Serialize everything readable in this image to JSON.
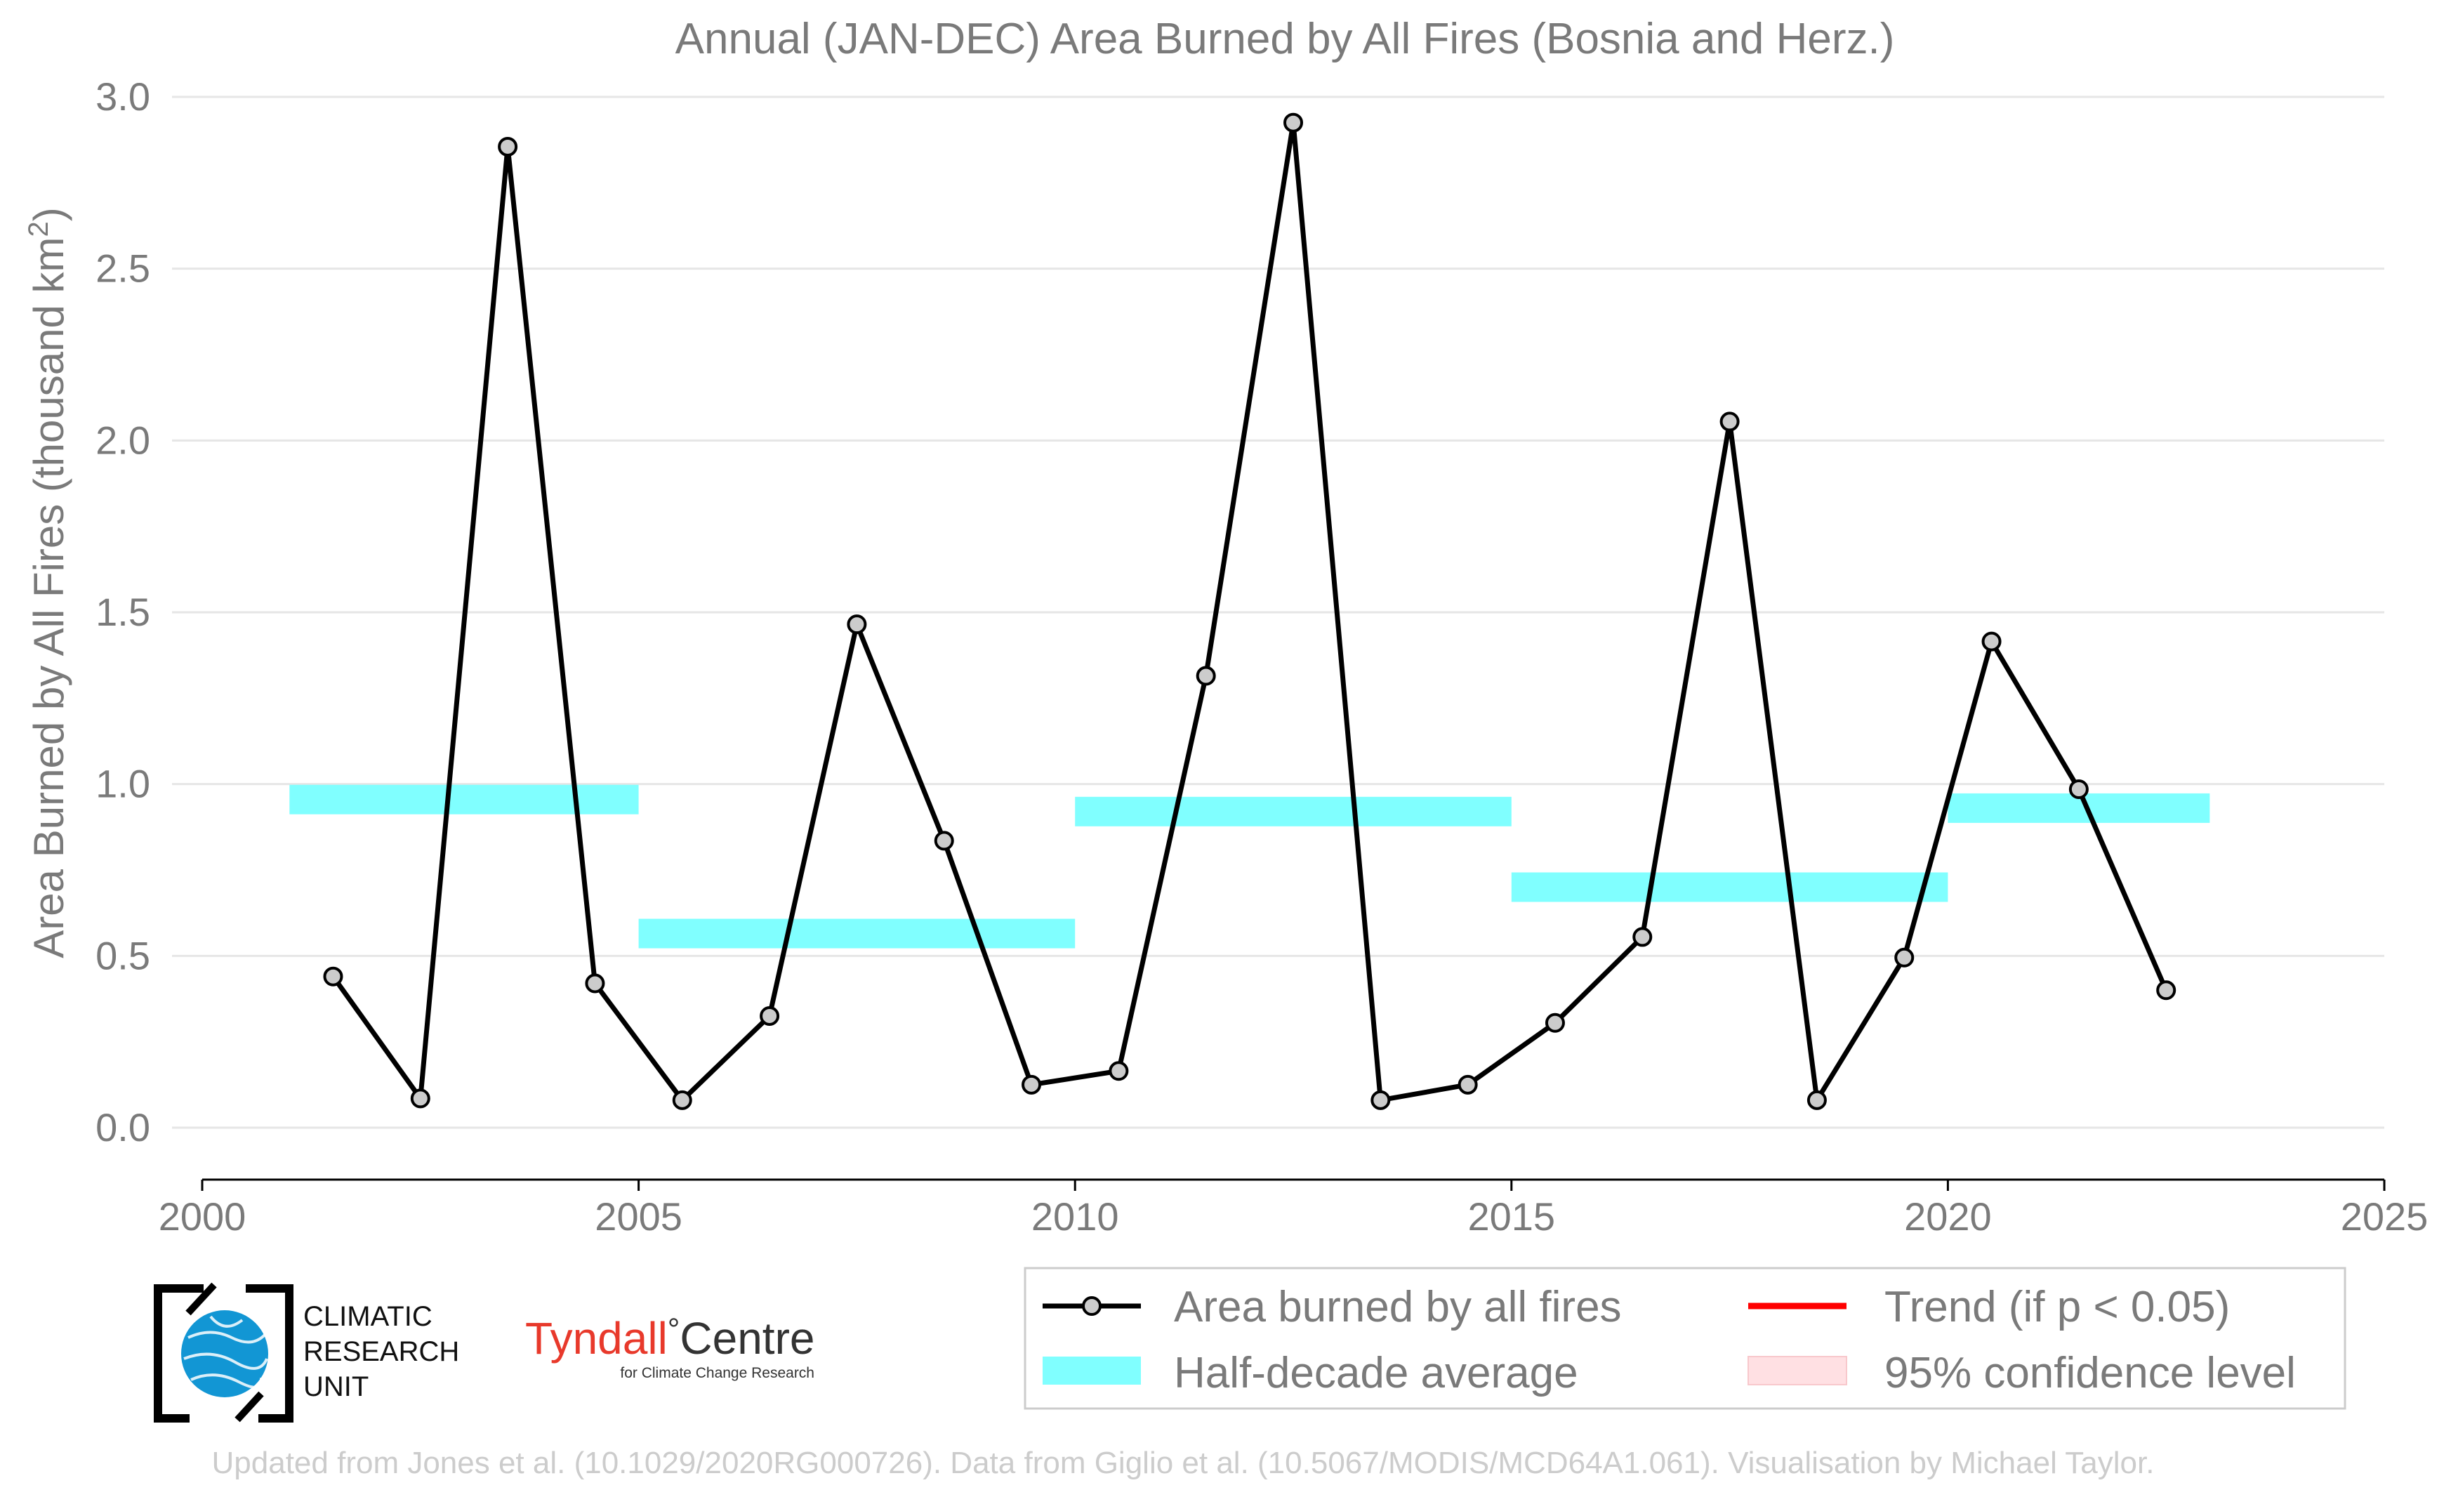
{
  "chart_data": {
    "type": "line",
    "title": "Annual (JAN-DEC) Area Burned by All Fires (Bosnia and Herz.)",
    "ylabel_prefix": "Area Burned by All Fires (thousand km",
    "ylabel_sup": "2",
    "ylabel_suffix": ")",
    "xlabel": "",
    "xlim": [
      2000,
      2025
    ],
    "ylim": [
      0.0,
      3.0
    ],
    "xticks": [
      2000,
      2005,
      2010,
      2015,
      2020,
      2025
    ],
    "yticks": [
      0.0,
      0.5,
      1.0,
      1.5,
      2.0,
      2.5,
      3.0
    ],
    "ytick_labels": [
      "0.0",
      "0.5",
      "1.0",
      "1.5",
      "2.0",
      "2.5",
      "3.0"
    ],
    "grid": "horizontal",
    "series": [
      {
        "name": "Area burned by all fires",
        "color": "#000000",
        "marker_fill": "#cccccc",
        "x": [
          2001.5,
          2002.5,
          2003.5,
          2004.5,
          2005.5,
          2006.5,
          2007.5,
          2008.5,
          2009.5,
          2010.5,
          2011.5,
          2012.5,
          2013.5,
          2014.5,
          2015.5,
          2016.5,
          2017.5,
          2018.5,
          2019.5,
          2020.5,
          2021.5,
          2022.5
        ],
        "y": [
          0.44,
          0.085,
          2.855,
          0.42,
          0.08,
          0.325,
          1.465,
          0.835,
          0.125,
          0.165,
          1.315,
          2.925,
          0.08,
          0.125,
          0.305,
          0.555,
          2.055,
          0.08,
          0.495,
          1.415,
          0.985,
          0.4
        ]
      }
    ],
    "half_decade_average": {
      "name": "Half-decade average",
      "color": "#80ffff",
      "segments": [
        {
          "x0": 2001,
          "x1": 2005,
          "y": 0.955
        },
        {
          "x0": 2005,
          "x1": 2010,
          "y": 0.565
        },
        {
          "x0": 2010,
          "x1": 2015,
          "y": 0.92
        },
        {
          "x0": 2015,
          "x1": 2020,
          "y": 0.7
        },
        {
          "x0": 2020,
          "x1": 2023,
          "y": 0.93
        }
      ]
    },
    "legend": {
      "placement": "bottom-right",
      "entries": [
        {
          "label": "Area burned by all fires",
          "kind": "line-marker",
          "color": "#000000"
        },
        {
          "label": "Trend (if p < 0.05)",
          "kind": "line",
          "color": "#ff0000"
        },
        {
          "label": "Half-decade average",
          "kind": "band",
          "color": "#80ffff"
        },
        {
          "label": "95% confidence level",
          "kind": "band",
          "color": "#ffe0e3"
        }
      ]
    }
  },
  "logos": {
    "cru": [
      "CLIMATIC",
      "RESEARCH",
      "UNIT"
    ],
    "tyndall_main": "Tyndall",
    "tyndall_degree": "°",
    "tyndall_centre": "Centre",
    "tyndall_sub": "for Climate Change Research"
  },
  "credit": "Updated from Jones et al. (10.1029/2020RG000726). Data from Giglio et al. (10.5067/MODIS/MCD64A1.061). Visualisation by Michael Taylor."
}
